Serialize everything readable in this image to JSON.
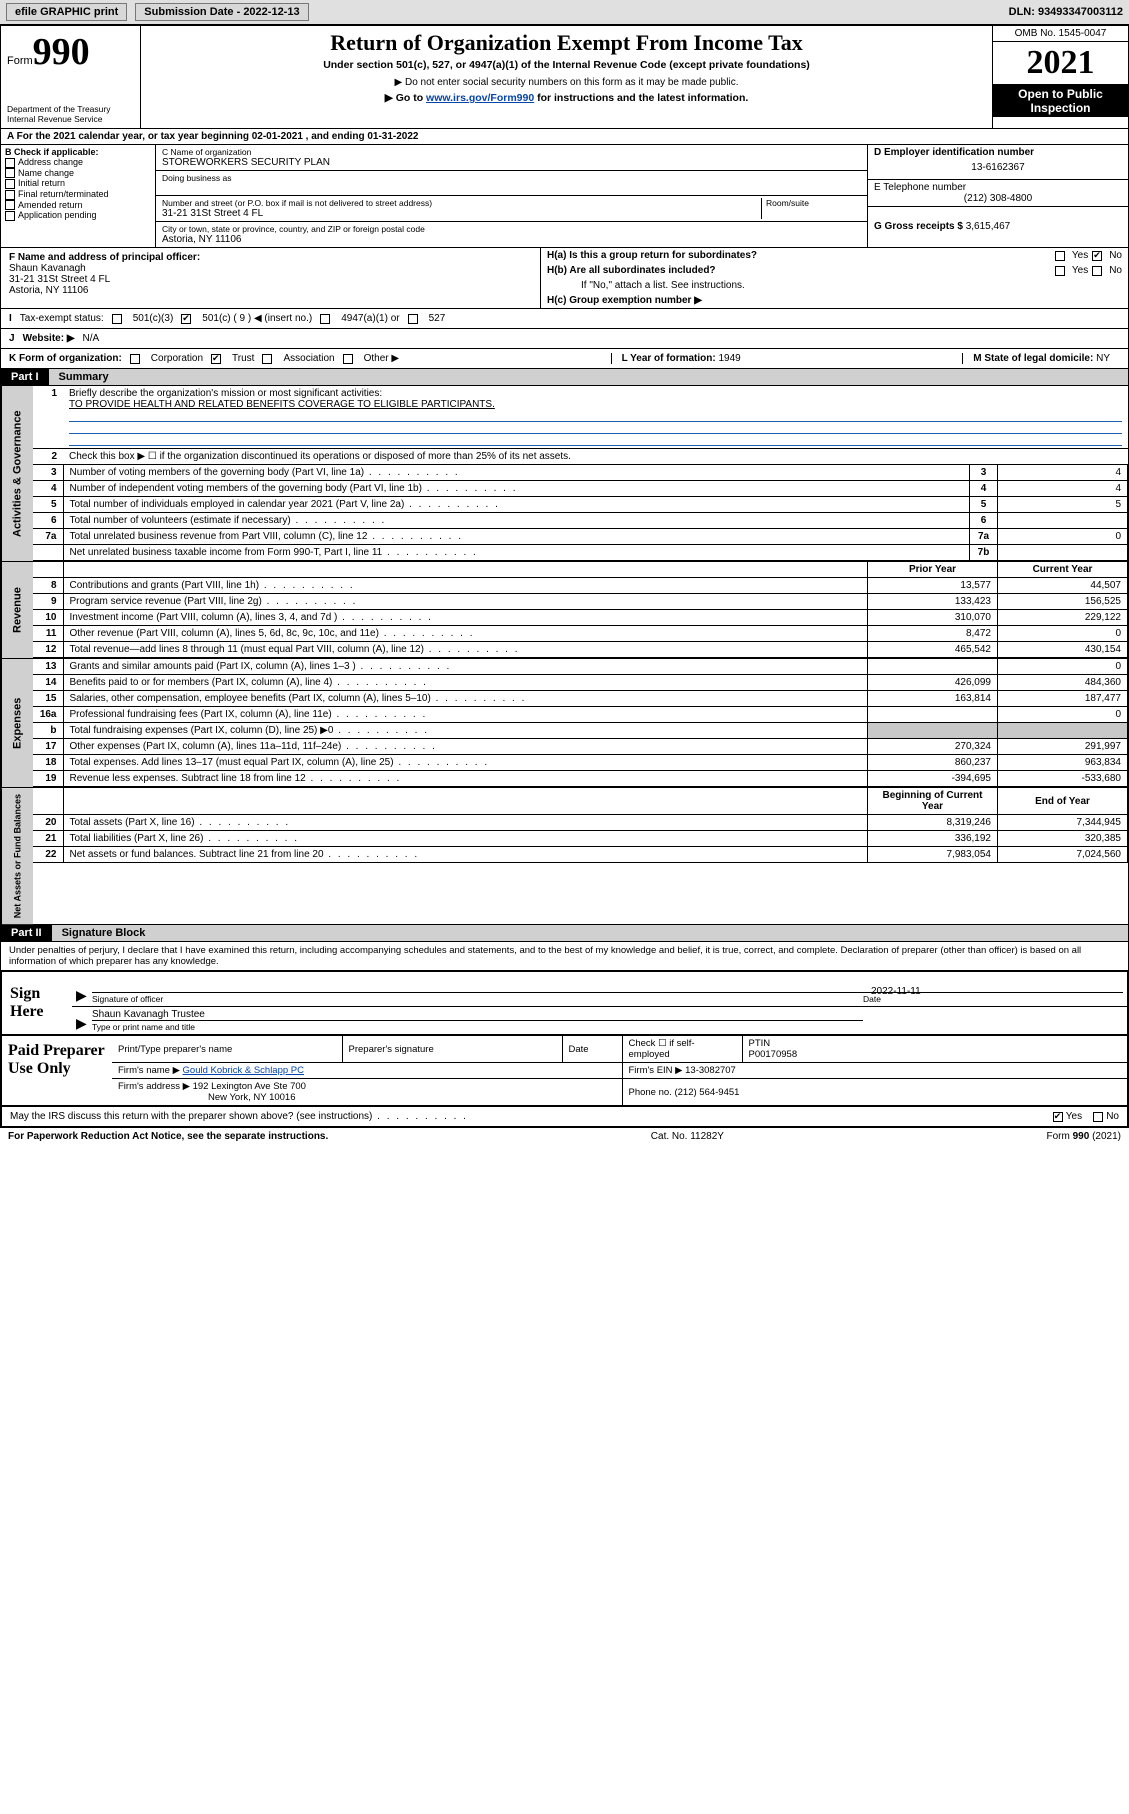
{
  "topbar": {
    "efile_label": "efile GRAPHIC print",
    "subdate_label": "Submission Date - 2022-12-13",
    "dln_label": "DLN: 93493347003112"
  },
  "header": {
    "form_word": "Form",
    "form_num": "990",
    "dept": "Department of the Treasury",
    "irs": "Internal Revenue Service",
    "title": "Return of Organization Exempt From Income Tax",
    "subtitle": "Under section 501(c), 527, or 4947(a)(1) of the Internal Revenue Code (except private foundations)",
    "note1": "▶ Do not enter social security numbers on this form as it may be made public.",
    "note2_pre": "▶ Go to ",
    "note2_link": "www.irs.gov/Form990",
    "note2_post": " for instructions and the latest information.",
    "omb": "OMB No. 1545-0047",
    "year": "2021",
    "open_pub": "Open to Public Inspection"
  },
  "periodA": "For the 2021 calendar year, or tax year beginning 02-01-2021  , and ending 01-31-2022",
  "boxB": {
    "heading": "B Check if applicable:",
    "items": [
      "Address change",
      "Name change",
      "Initial return",
      "Final return/terminated",
      "Amended return",
      "Application pending"
    ]
  },
  "boxC": {
    "label_name": "C Name of organization",
    "org_name": "STOREWORKERS SECURITY PLAN",
    "dba_label": "Doing business as",
    "addr_label": "Number and street (or P.O. box if mail is not delivered to street address)",
    "room_label": "Room/suite",
    "addr": "31-21 31St Street 4 FL",
    "city_label": "City or town, state or province, country, and ZIP or foreign postal code",
    "city": "Astoria, NY  11106"
  },
  "boxD": {
    "label": "D Employer identification number",
    "ein": "13-6162367"
  },
  "boxE": {
    "label": "E Telephone number",
    "phone": "(212) 308-4800"
  },
  "boxG": {
    "label": "G Gross receipts $",
    "amount": "3,615,467"
  },
  "boxF": {
    "label": "F  Name and address of principal officer:",
    "name": "Shaun Kavanagh",
    "addr1": "31-21 31St Street 4 FL",
    "addr2": "Astoria, NY  11106"
  },
  "boxH": {
    "ha_label": "H(a)  Is this a group return for subordinates?",
    "hb_label": "H(b)  Are all subordinates included?",
    "hb_note": "If \"No,\" attach a list. See instructions.",
    "hc_label": "H(c)  Group exemption number ▶",
    "yes": "Yes",
    "no": "No"
  },
  "rowI": {
    "label": "Tax-exempt status:",
    "o1": "501(c)(3)",
    "o2": "501(c) ( 9 ) ◀ (insert no.)",
    "o3": "4947(a)(1) or",
    "o4": "527"
  },
  "rowJ": {
    "label": "Website: ▶",
    "value": "N/A"
  },
  "rowK": {
    "label": "K Form of organization:",
    "o1": "Corporation",
    "o2": "Trust",
    "o3": "Association",
    "o4": "Other ▶"
  },
  "rowL": {
    "label": "L Year of formation:",
    "value": "1949"
  },
  "rowM": {
    "label": "M State of legal domicile:",
    "value": "NY"
  },
  "part1": {
    "hdr": "Part I",
    "title": "Summary"
  },
  "summary": {
    "q1_label": "Briefly describe the organization's mission or most significant activities:",
    "q1_text": "TO PROVIDE HEALTH AND RELATED BENEFITS COVERAGE TO ELIGIBLE PARTICIPANTS.",
    "q2": "Check this box ▶ ☐  if the organization discontinued its operations or disposed of more than 25% of its net assets.",
    "rows_gov": [
      {
        "n": "3",
        "t": "Number of voting members of the governing body (Part VI, line 1a)",
        "box": "3",
        "v": "4"
      },
      {
        "n": "4",
        "t": "Number of independent voting members of the governing body (Part VI, line 1b)",
        "box": "4",
        "v": "4"
      },
      {
        "n": "5",
        "t": "Total number of individuals employed in calendar year 2021 (Part V, line 2a)",
        "box": "5",
        "v": "5"
      },
      {
        "n": "6",
        "t": "Total number of volunteers (estimate if necessary)",
        "box": "6",
        "v": ""
      },
      {
        "n": "7a",
        "t": "Total unrelated business revenue from Part VIII, column (C), line 12",
        "box": "7a",
        "v": "0"
      },
      {
        "n": "",
        "t": "Net unrelated business taxable income from Form 990-T, Part I, line 11",
        "box": "7b",
        "v": ""
      }
    ],
    "col_prior": "Prior Year",
    "col_curr": "Current Year",
    "rev": [
      {
        "n": "8",
        "t": "Contributions and grants (Part VIII, line 1h)",
        "p": "13,577",
        "c": "44,507"
      },
      {
        "n": "9",
        "t": "Program service revenue (Part VIII, line 2g)",
        "p": "133,423",
        "c": "156,525"
      },
      {
        "n": "10",
        "t": "Investment income (Part VIII, column (A), lines 3, 4, and 7d )",
        "p": "310,070",
        "c": "229,122"
      },
      {
        "n": "11",
        "t": "Other revenue (Part VIII, column (A), lines 5, 6d, 8c, 9c, 10c, and 11e)",
        "p": "8,472",
        "c": "0"
      },
      {
        "n": "12",
        "t": "Total revenue—add lines 8 through 11 (must equal Part VIII, column (A), line 12)",
        "p": "465,542",
        "c": "430,154"
      }
    ],
    "exp": [
      {
        "n": "13",
        "t": "Grants and similar amounts paid (Part IX, column (A), lines 1–3 )",
        "p": "",
        "c": "0"
      },
      {
        "n": "14",
        "t": "Benefits paid to or for members (Part IX, column (A), line 4)",
        "p": "426,099",
        "c": "484,360"
      },
      {
        "n": "15",
        "t": "Salaries, other compensation, employee benefits (Part IX, column (A), lines 5–10)",
        "p": "163,814",
        "c": "187,477"
      },
      {
        "n": "16a",
        "t": "Professional fundraising fees (Part IX, column (A), line 11e)",
        "p": "",
        "c": "0"
      },
      {
        "n": "b",
        "t": "Total fundraising expenses (Part IX, column (D), line 25) ▶0",
        "p": "shade",
        "c": "shade"
      },
      {
        "n": "17",
        "t": "Other expenses (Part IX, column (A), lines 11a–11d, 11f–24e)",
        "p": "270,324",
        "c": "291,997"
      },
      {
        "n": "18",
        "t": "Total expenses. Add lines 13–17 (must equal Part IX, column (A), line 25)",
        "p": "860,237",
        "c": "963,834"
      },
      {
        "n": "19",
        "t": "Revenue less expenses. Subtract line 18 from line 12",
        "p": "-394,695",
        "c": "-533,680"
      }
    ],
    "col_beg": "Beginning of Current Year",
    "col_end": "End of Year",
    "net": [
      {
        "n": "20",
        "t": "Total assets (Part X, line 16)",
        "p": "8,319,246",
        "c": "7,344,945"
      },
      {
        "n": "21",
        "t": "Total liabilities (Part X, line 26)",
        "p": "336,192",
        "c": "320,385"
      },
      {
        "n": "22",
        "t": "Net assets or fund balances. Subtract line 21 from line 20",
        "p": "7,983,054",
        "c": "7,024,560"
      }
    ]
  },
  "vtabs": {
    "gov": "Activities & Governance",
    "rev": "Revenue",
    "exp": "Expenses",
    "net": "Net Assets or Fund Balances"
  },
  "part2": {
    "hdr": "Part II",
    "title": "Signature Block"
  },
  "penalty": "Under penalties of perjury, I declare that I have examined this return, including accompanying schedules and statements, and to the best of my knowledge and belief, it is true, correct, and complete. Declaration of preparer (other than officer) is based on all information of which preparer has any knowledge.",
  "sign": {
    "here": "Sign Here",
    "sig_officer": "Signature of officer",
    "date_label": "Date",
    "date": "2022-11-11",
    "name_title": "Shaun Kavanagh  Trustee",
    "type_label": "Type or print name and title"
  },
  "prep": {
    "label": "Paid Preparer Use Only",
    "h1": "Print/Type preparer's name",
    "h2": "Preparer's signature",
    "h3": "Date",
    "h4_pre": "Check ☐ if self-employed",
    "h5": "PTIN",
    "ptin": "P00170958",
    "firm_name_lbl": "Firm's name    ▶",
    "firm_name": "Gould Kobrick & Schlapp PC",
    "firm_ein_lbl": "Firm's EIN ▶",
    "firm_ein": "13-3082707",
    "firm_addr_lbl": "Firm's address ▶",
    "firm_addr1": "192 Lexington Ave Ste 700",
    "firm_addr2": "New York, NY  10016",
    "phone_lbl": "Phone no.",
    "phone": "(212) 564-9451"
  },
  "discuss": {
    "q": "May the IRS discuss this return with the preparer shown above? (see instructions)",
    "yes": "Yes",
    "no": "No"
  },
  "footer": {
    "l": "For Paperwork Reduction Act Notice, see the separate instructions.",
    "m": "Cat. No. 11282Y",
    "r": "Form 990 (2021)"
  },
  "colors": {
    "link": "#0645ad",
    "shade": "#c8c8c8",
    "header_bg": "#e0e0e0",
    "underline": "#1a5fb4"
  }
}
